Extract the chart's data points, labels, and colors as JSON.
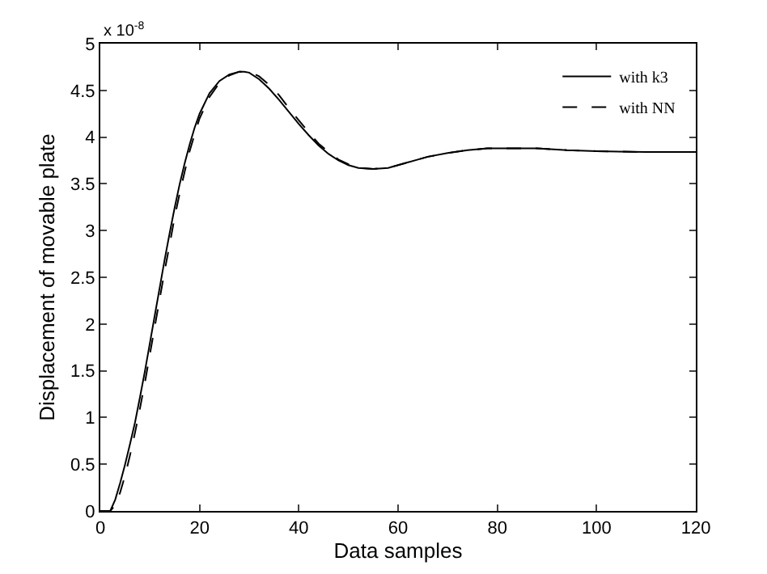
{
  "chart_data": {
    "type": "line",
    "xlabel": "Data samples",
    "ylabel": "Displacement of movable plate",
    "annotations": [
      "x 10$^{-8}$"
    ],
    "xlim": [
      0,
      120
    ],
    "xticks": [
      0,
      20,
      40,
      60,
      80,
      100,
      120
    ],
    "ylim": [
      0,
      5
    ],
    "yticks": [
      0,
      0.5,
      1,
      1.5,
      2,
      2.5,
      3,
      3.5,
      4,
      4.5,
      5
    ],
    "grid": false,
    "legend": "top right",
    "marker": "none",
    "series": [
      {
        "name": "with k3",
        "color": "#000000",
        "line_style": "solid",
        "x": [
          0,
          2,
          3,
          4,
          5,
          6,
          7,
          8,
          9,
          10,
          11,
          12,
          13,
          14,
          15,
          16,
          17,
          18,
          19,
          20,
          22,
          24,
          26,
          28,
          29,
          30,
          32,
          34,
          36,
          38,
          40,
          42,
          44,
          46,
          48,
          50,
          52,
          55,
          58,
          62,
          66,
          70,
          74,
          78,
          84,
          88,
          94,
          100,
          110,
          120
        ],
        "values": [
          0,
          0,
          0.12,
          0.3,
          0.5,
          0.72,
          0.95,
          1.22,
          1.5,
          1.8,
          2.1,
          2.4,
          2.7,
          2.98,
          3.25,
          3.5,
          3.72,
          3.92,
          4.1,
          4.25,
          4.47,
          4.6,
          4.67,
          4.7,
          4.7,
          4.69,
          4.62,
          4.52,
          4.4,
          4.27,
          4.14,
          4.02,
          3.91,
          3.82,
          3.75,
          3.7,
          3.67,
          3.66,
          3.67,
          3.73,
          3.79,
          3.83,
          3.86,
          3.88,
          3.88,
          3.88,
          3.86,
          3.85,
          3.84,
          3.84
        ]
      },
      {
        "name": "with NN",
        "color": "#000000",
        "line_style": "dashed",
        "x": [
          0,
          2,
          3,
          4,
          5,
          6,
          7,
          8,
          9,
          10,
          11,
          12,
          13,
          14,
          15,
          16,
          17,
          18,
          19,
          20,
          22,
          24,
          26,
          28,
          29,
          30,
          32,
          34,
          36,
          38,
          40,
          42,
          44,
          46,
          48,
          50,
          52,
          55,
          58,
          62,
          66,
          70,
          74,
          78,
          84,
          88,
          94,
          100,
          110,
          120
        ],
        "values": [
          0,
          0,
          0.06,
          0.2,
          0.38,
          0.6,
          0.84,
          1.1,
          1.38,
          1.68,
          1.98,
          2.28,
          2.58,
          2.86,
          3.15,
          3.4,
          3.63,
          3.85,
          4.03,
          4.2,
          4.43,
          4.58,
          4.66,
          4.7,
          4.7,
          4.7,
          4.65,
          4.56,
          4.45,
          4.31,
          4.18,
          4.05,
          3.93,
          3.84,
          3.76,
          3.71,
          3.67,
          3.66,
          3.67,
          3.73,
          3.79,
          3.83,
          3.86,
          3.88,
          3.88,
          3.88,
          3.86,
          3.85,
          3.84,
          3.84
        ]
      }
    ]
  }
}
